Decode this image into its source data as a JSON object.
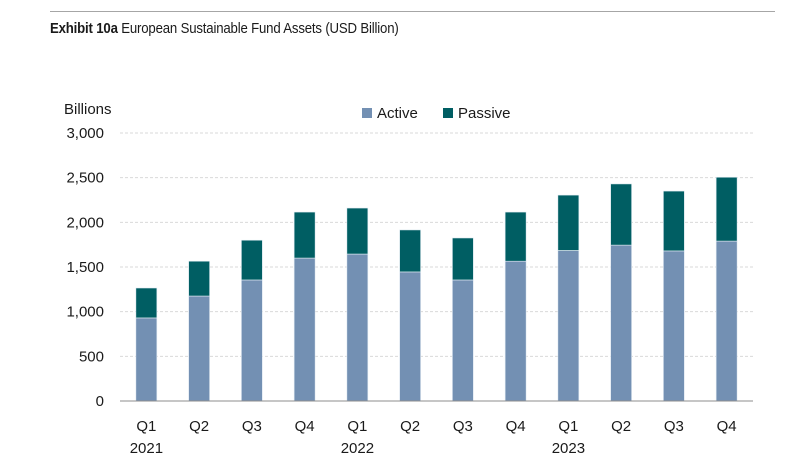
{
  "header": {
    "exhibit_label": "Exhibit 10a",
    "title_text": "European Sustainable Fund Assets (USD Billion)"
  },
  "chart_data": {
    "type": "bar",
    "stacked": true,
    "title": "Exhibit 10a European Sustainable Fund Assets (USD Billion)",
    "ylabel": "Billions",
    "xlabel": "",
    "ylim": [
      0,
      3000
    ],
    "yticks": [
      0,
      500,
      1000,
      1500,
      2000,
      2500,
      3000
    ],
    "ytick_labels": [
      "0",
      "500",
      "1,000",
      "1,500",
      "2,000",
      "2,500",
      "3,000"
    ],
    "grid": true,
    "legend_position": "top-center",
    "categories": [
      "Q1 2021",
      "Q2 2021",
      "Q3 2021",
      "Q4 2021",
      "Q1 2022",
      "Q2 2022",
      "Q3 2022",
      "Q4 2022",
      "Q1 2023",
      "Q2 2023",
      "Q3 2023",
      "Q4 2023"
    ],
    "category_labels": [
      {
        "quarter": "Q1",
        "year": "2021"
      },
      {
        "quarter": "Q2",
        "year": ""
      },
      {
        "quarter": "Q3",
        "year": ""
      },
      {
        "quarter": "Q4",
        "year": ""
      },
      {
        "quarter": "Q1",
        "year": "2022"
      },
      {
        "quarter": "Q2",
        "year": ""
      },
      {
        "quarter": "Q3",
        "year": ""
      },
      {
        "quarter": "Q4",
        "year": ""
      },
      {
        "quarter": "Q1",
        "year": "2023"
      },
      {
        "quarter": "Q2",
        "year": ""
      },
      {
        "quarter": "Q3",
        "year": ""
      },
      {
        "quarter": "Q4",
        "year": ""
      }
    ],
    "series": [
      {
        "name": "Active",
        "color": "#7390b3",
        "values": [
          930,
          1175,
          1355,
          1600,
          1645,
          1445,
          1355,
          1565,
          1685,
          1745,
          1680,
          1790
        ]
      },
      {
        "name": "Passive",
        "color": "#005e63",
        "values": [
          335,
          390,
          445,
          515,
          515,
          470,
          470,
          550,
          620,
          685,
          670,
          715
        ]
      }
    ]
  }
}
